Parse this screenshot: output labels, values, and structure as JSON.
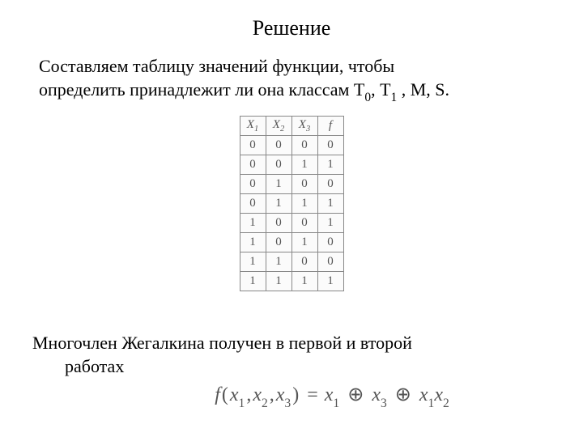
{
  "title": "Решение",
  "intro": {
    "line1": "Составляем таблицу значений функции, чтобы",
    "line2_pre": "определить принадлежит ли она классам Т",
    "line2_sub0": "0",
    "line2_mid1": ", Т",
    "line2_sub1": "1",
    "line2_post": " , M, S."
  },
  "table": {
    "headers": {
      "h1_base": "X",
      "h1_sub": "1",
      "h2_base": "X",
      "h2_sub": "2",
      "h3_base": "X",
      "h3_sub": "3",
      "h4": "f"
    },
    "rows": [
      {
        "c1": "0",
        "c2": "0",
        "c3": "0",
        "c4": "0"
      },
      {
        "c1": "0",
        "c2": "0",
        "c3": "1",
        "c4": "1"
      },
      {
        "c1": "0",
        "c2": "1",
        "c3": "0",
        "c4": "0"
      },
      {
        "c1": "0",
        "c2": "1",
        "c3": "1",
        "c4": "1"
      },
      {
        "c1": "1",
        "c2": "0",
        "c3": "0",
        "c4": "1"
      },
      {
        "c1": "1",
        "c2": "0",
        "c3": "1",
        "c4": "0"
      },
      {
        "c1": "1",
        "c2": "1",
        "c3": "0",
        "c4": "0"
      },
      {
        "c1": "1",
        "c2": "1",
        "c3": "1",
        "c4": "1"
      }
    ]
  },
  "bottom": {
    "line1": "Многочлен Жегалкина получен в первой и второй",
    "line2": "работах"
  },
  "formula": {
    "f": "f",
    "lp": "(",
    "x": "x",
    "s1": "1",
    "comma1": ",",
    "s2": "2",
    "comma2": ",",
    "s3": "3",
    "rp": ")",
    "eq": "=",
    "oplus": "⊕"
  },
  "style": {
    "background": "#ffffff",
    "text_color": "#000000",
    "table_border_color": "#888888",
    "table_text_color": "#555555",
    "formula_color": "#555555"
  }
}
